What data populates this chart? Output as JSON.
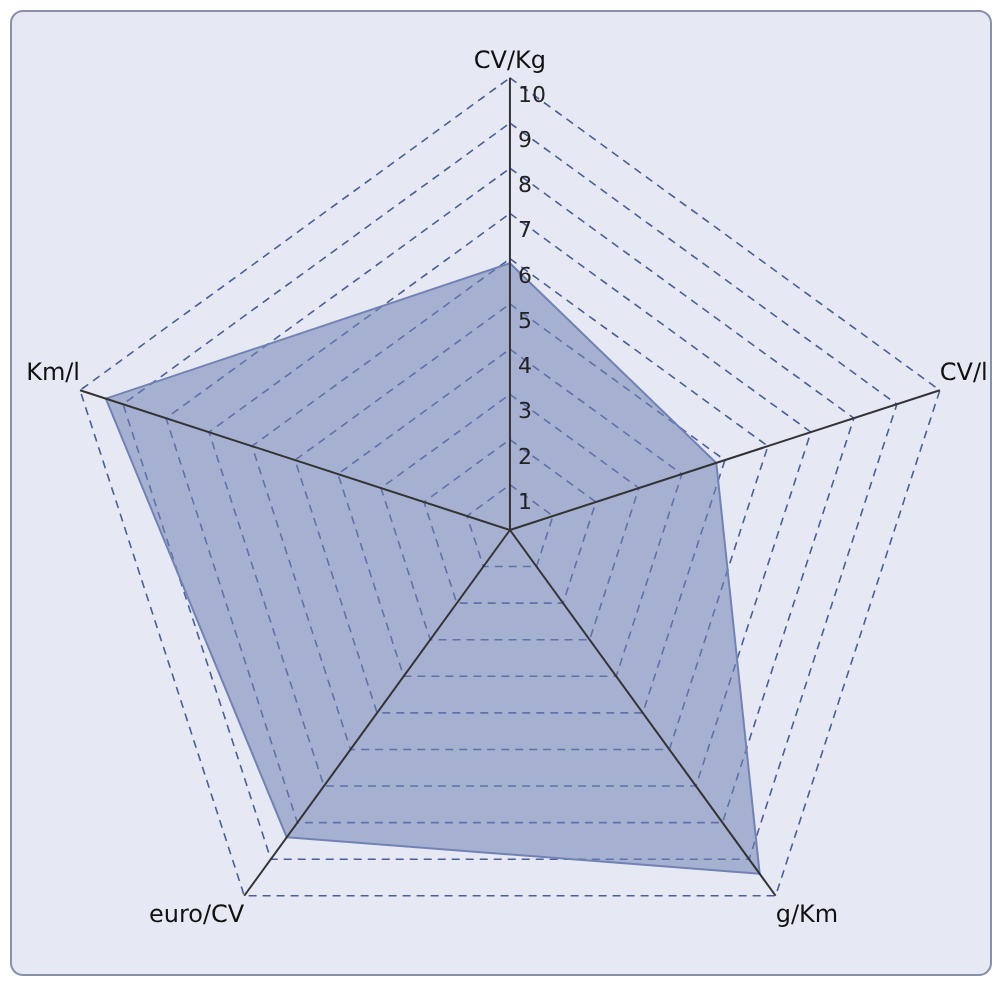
{
  "chart_data": {
    "type": "radar",
    "categories": [
      "CV/Kg",
      "CV/l",
      "g/Km",
      "euro/CV",
      "Km/l"
    ],
    "series": [
      {
        "color": "#7183b5",
        "values": [
          5.9,
          4.8,
          9.4,
          8.4,
          9.4
        ]
      }
    ],
    "ylim": [
      0,
      10
    ],
    "yticks": [
      1,
      2,
      3,
      4,
      5,
      6,
      7,
      8,
      9,
      10
    ],
    "grid": true
  }
}
